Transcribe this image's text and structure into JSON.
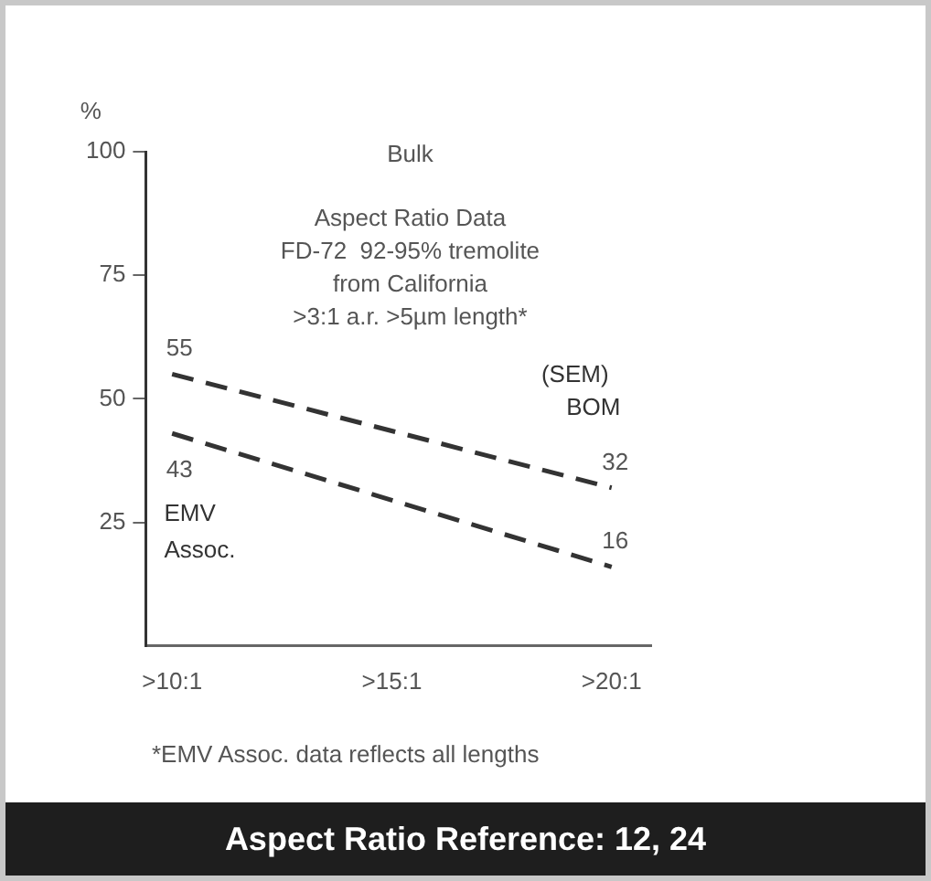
{
  "chart_data": {
    "type": "line",
    "title": "Bulk",
    "ylabel": "%",
    "annotations": [
      "Aspect Ratio Data",
      "FD-72  92-95% tremolite",
      "from California",
      ">3:1 a.r. >5µm length*",
      "(SEM)",
      "*EMV Assoc. data reflects all lengths",
      "Aspect Ratio Reference: 12, 24"
    ],
    "categories": [
      ">10:1",
      ">15:1",
      ">20:1"
    ],
    "ylim": [
      0,
      100
    ],
    "yticks": [
      25,
      50,
      75,
      100
    ],
    "series": [
      {
        "name": "BOM",
        "color": "#333333",
        "values": [
          55,
          null,
          32
        ]
      },
      {
        "name": "EMV Assoc.",
        "color": "#333333",
        "values": [
          43,
          null,
          16
        ]
      }
    ],
    "data_labels": true,
    "grid": false,
    "legend": false,
    "marker": "none",
    "line_style": "dashed"
  }
}
